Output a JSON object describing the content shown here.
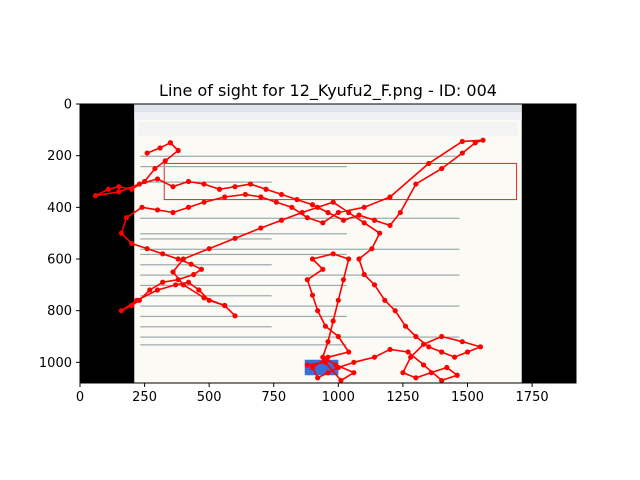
{
  "chart_data": {
    "type": "scatter",
    "title": "Line of sight for 12_Kyufu2_F.png - ID: 004",
    "xlabel": "",
    "ylabel": "",
    "xlim": [
      0,
      1920
    ],
    "ylim": [
      1080,
      0
    ],
    "y_inverted": true,
    "xticks": [
      0,
      250,
      500,
      750,
      1000,
      1250,
      1500,
      1750
    ],
    "yticks": [
      0,
      200,
      400,
      600,
      800,
      1000
    ],
    "grid": false,
    "colors": {
      "gaze": "#ff0000",
      "background": "#000000",
      "screenshot": "#fbfaf5"
    },
    "screenshot_extent": {
      "x": [
        210,
        1710
      ],
      "y": [
        0,
        1080
      ]
    },
    "gaze_path": [
      [
        260,
        190
      ],
      [
        310,
        170
      ],
      [
        350,
        150
      ],
      [
        380,
        180
      ],
      [
        330,
        220
      ],
      [
        290,
        250
      ],
      [
        250,
        300
      ],
      [
        200,
        330
      ],
      [
        150,
        320
      ],
      [
        110,
        330
      ],
      [
        60,
        355
      ],
      [
        150,
        340
      ],
      [
        230,
        310
      ],
      [
        300,
        290
      ],
      [
        360,
        320
      ],
      [
        420,
        300
      ],
      [
        480,
        310
      ],
      [
        540,
        330
      ],
      [
        600,
        320
      ],
      [
        660,
        310
      ],
      [
        720,
        330
      ],
      [
        780,
        350
      ],
      [
        840,
        370
      ],
      [
        900,
        390
      ],
      [
        960,
        420
      ],
      [
        1020,
        450
      ],
      [
        1080,
        430
      ],
      [
        1140,
        450
      ],
      [
        1200,
        470
      ],
      [
        1240,
        420
      ],
      [
        1300,
        310
      ],
      [
        1400,
        250
      ],
      [
        1480,
        190
      ],
      [
        1530,
        150
      ],
      [
        1560,
        140
      ],
      [
        1480,
        145
      ],
      [
        1350,
        230
      ],
      [
        1200,
        360
      ],
      [
        1100,
        400
      ],
      [
        1000,
        420
      ],
      [
        940,
        460
      ],
      [
        880,
        440
      ],
      [
        820,
        400
      ],
      [
        760,
        380
      ],
      [
        700,
        360
      ],
      [
        640,
        350
      ],
      [
        560,
        360
      ],
      [
        480,
        380
      ],
      [
        420,
        400
      ],
      [
        360,
        420
      ],
      [
        300,
        410
      ],
      [
        240,
        400
      ],
      [
        180,
        440
      ],
      [
        160,
        500
      ],
      [
        200,
        540
      ],
      [
        260,
        560
      ],
      [
        320,
        580
      ],
      [
        380,
        600
      ],
      [
        430,
        620
      ],
      [
        470,
        640
      ],
      [
        440,
        660
      ],
      [
        380,
        680
      ],
      [
        320,
        690
      ],
      [
        270,
        720
      ],
      [
        230,
        760
      ],
      [
        200,
        780
      ],
      [
        160,
        800
      ],
      [
        220,
        760
      ],
      [
        300,
        720
      ],
      [
        370,
        700
      ],
      [
        420,
        690
      ],
      [
        460,
        720
      ],
      [
        500,
        760
      ],
      [
        560,
        780
      ],
      [
        600,
        820
      ],
      [
        560,
        780
      ],
      [
        480,
        750
      ],
      [
        400,
        700
      ],
      [
        360,
        650
      ],
      [
        400,
        600
      ],
      [
        500,
        560
      ],
      [
        600,
        520
      ],
      [
        700,
        480
      ],
      [
        780,
        450
      ],
      [
        860,
        420
      ],
      [
        920,
        400
      ],
      [
        980,
        380
      ],
      [
        1040,
        420
      ],
      [
        1100,
        460
      ],
      [
        1160,
        500
      ],
      [
        1130,
        560
      ],
      [
        1080,
        600
      ],
      [
        1100,
        660
      ],
      [
        1140,
        700
      ],
      [
        1180,
        760
      ],
      [
        1220,
        800
      ],
      [
        1260,
        860
      ],
      [
        1300,
        900
      ],
      [
        1350,
        940
      ],
      [
        1400,
        960
      ],
      [
        1450,
        980
      ],
      [
        1500,
        960
      ],
      [
        1550,
        940
      ],
      [
        1480,
        920
      ],
      [
        1400,
        900
      ],
      [
        1330,
        930
      ],
      [
        1280,
        980
      ],
      [
        1250,
        1040
      ],
      [
        1300,
        1060
      ],
      [
        1360,
        1040
      ],
      [
        1420,
        1020
      ],
      [
        1460,
        1050
      ],
      [
        1400,
        1070
      ],
      [
        1330,
        1010
      ],
      [
        1270,
        960
      ],
      [
        1200,
        950
      ],
      [
        1140,
        980
      ],
      [
        1060,
        1000
      ],
      [
        1000,
        1020
      ],
      [
        960,
        1040
      ],
      [
        920,
        1060
      ],
      [
        900,
        1020
      ],
      [
        960,
        980
      ],
      [
        1040,
        960
      ],
      [
        1000,
        900
      ],
      [
        950,
        860
      ],
      [
        920,
        800
      ],
      [
        900,
        740
      ],
      [
        880,
        680
      ],
      [
        940,
        640
      ],
      [
        900,
        600
      ],
      [
        980,
        580
      ],
      [
        1040,
        600
      ],
      [
        1020,
        680
      ],
      [
        1000,
        760
      ],
      [
        980,
        840
      ],
      [
        960,
        920
      ],
      [
        940,
        980
      ],
      [
        990,
        1010
      ],
      [
        1060,
        1040
      ],
      [
        1010,
        1070
      ],
      [
        950,
        1000
      ],
      [
        880,
        1010
      ]
    ]
  }
}
